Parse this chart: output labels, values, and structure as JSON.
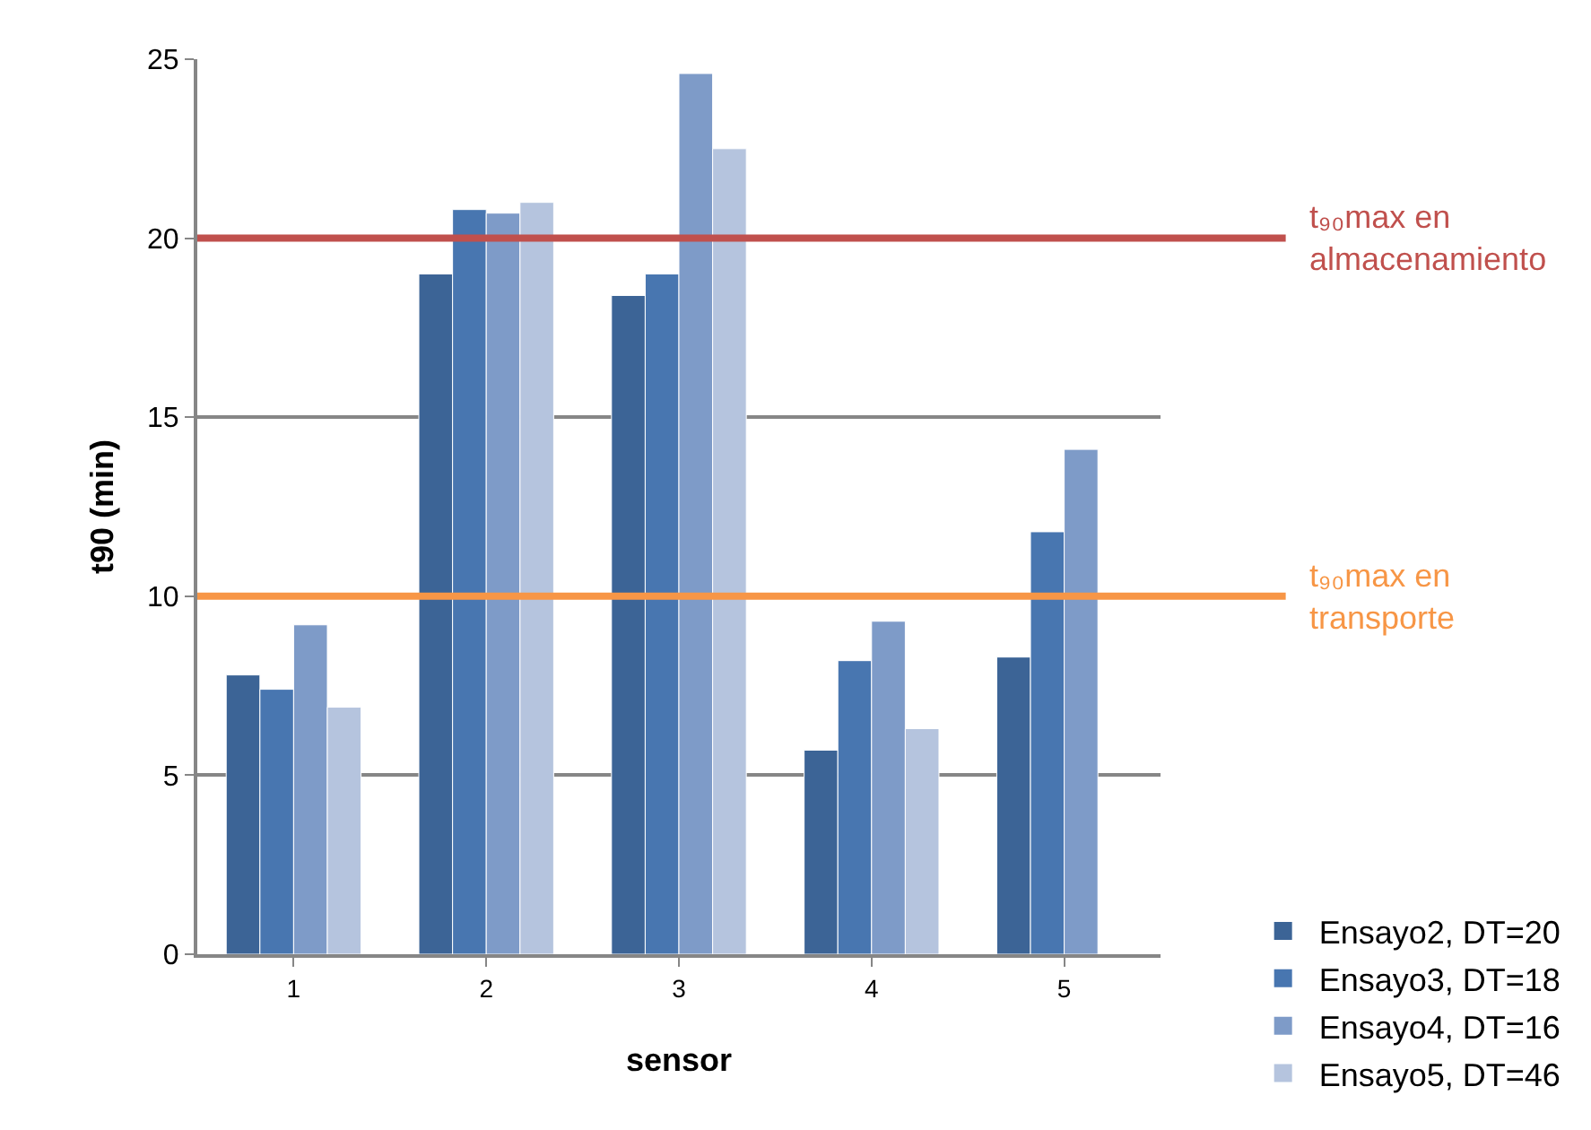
{
  "chart_data": {
    "type": "bar",
    "xlabel": "sensor",
    "ylabel": "t90 (min)",
    "categories": [
      "1",
      "2",
      "3",
      "4",
      "5"
    ],
    "series": [
      {
        "name": "Ensayo2, DT=20",
        "color": "#3c6496",
        "values": [
          7.8,
          19.0,
          18.4,
          5.7,
          8.3
        ]
      },
      {
        "name": "Ensayo3, DT=18",
        "color": "#4876b0",
        "values": [
          7.4,
          20.8,
          19.0,
          8.2,
          11.8
        ]
      },
      {
        "name": "Ensayo4, DT=16",
        "color": "#7e9bc8",
        "values": [
          9.2,
          20.7,
          24.6,
          9.3,
          14.1
        ]
      },
      {
        "name": "Ensayo5, DT=46",
        "color": "#b5c4de",
        "values": [
          6.9,
          21.0,
          22.5,
          6.3,
          null
        ]
      }
    ],
    "ylim": [
      0,
      25
    ],
    "yticks": [
      0,
      5,
      10,
      15,
      20,
      25
    ],
    "grid": "y",
    "legend": "bottom right",
    "ref_lines": [
      {
        "axis": "y",
        "value": 20,
        "label": "t₉₀max en almacenamiento",
        "color": "#c0504d"
      },
      {
        "axis": "y",
        "value": 10,
        "label": "t₉₀max en transporte",
        "color": "#f79646"
      }
    ]
  }
}
